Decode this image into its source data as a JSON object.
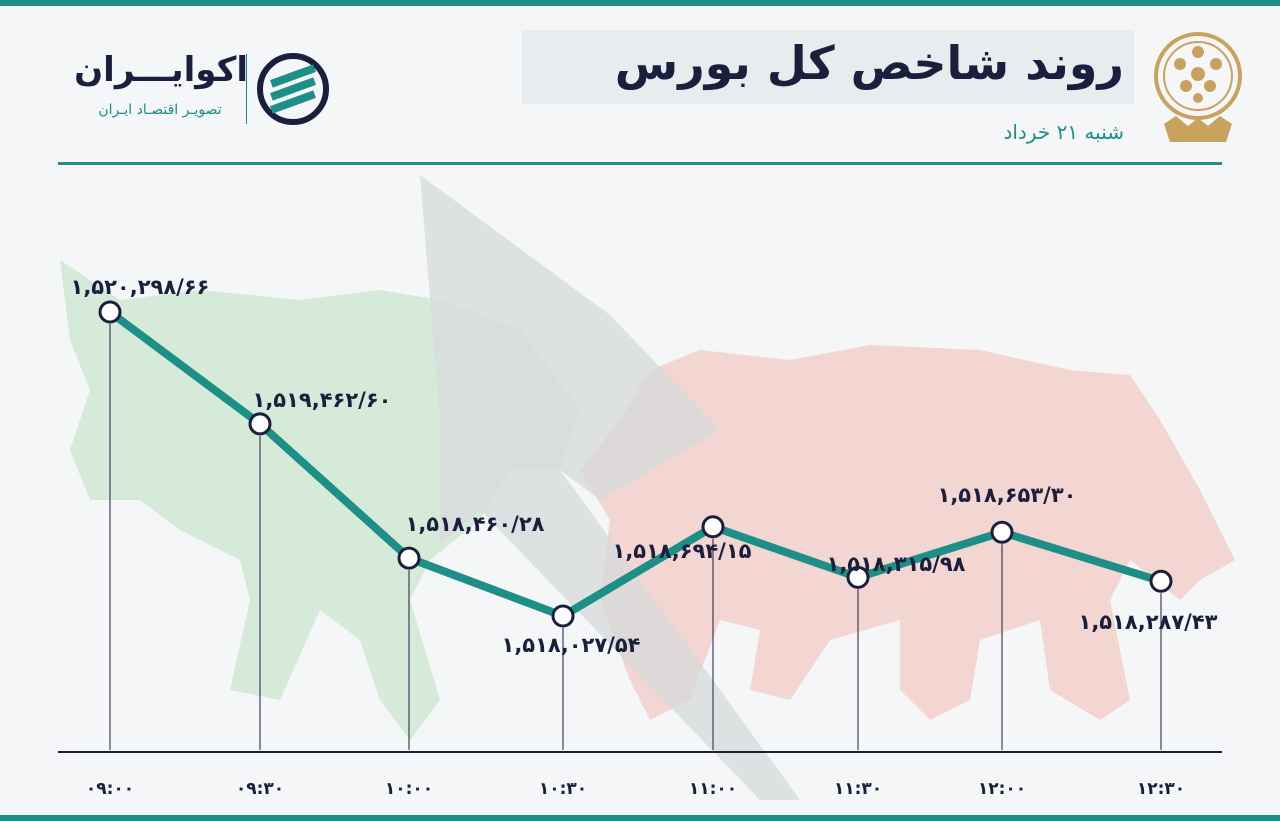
{
  "header": {
    "title": "روند شاخص کل بورس",
    "subtitle": "شنبه ۲۱ خرداد"
  },
  "brand": {
    "name": "اکوایـــران",
    "tagline": "تصویـر اقتصـاد ایـران"
  },
  "colors": {
    "accent": "#1d8f86",
    "text": "#1a1f3d",
    "bull": "#cfe7d4",
    "bear": "#f2d0cb",
    "arrow": "#d7d9db"
  },
  "chart_data": {
    "type": "line",
    "categories": [
      "۰۹:۰۰",
      "۰۹:۳۰",
      "۱۰:۰۰",
      "۱۰:۳۰",
      "۱۱:۰۰",
      "۱۱:۳۰",
      "۱۲:۰۰",
      "۱۲:۳۰"
    ],
    "values": [
      1520298.66,
      1519462.6,
      1518460.28,
      1518027.54,
      1518694.15,
      1518315.98,
      1518653.3,
      1518287.43
    ],
    "data_labels": [
      "۱,۵۲۰,۲۹۸/۶۶",
      "۱,۵۱۹,۴۶۲/۶۰",
      "۱,۵۱۸,۴۶۰/۲۸",
      "۱,۵۱۸,۰۲۷/۵۴",
      "۱,۵۱۸,۶۹۴/۱۵",
      "۱,۵۱۸,۳۱۵/۹۸",
      "۱,۵۱۸,۶۵۳/۳۰",
      "۱,۵۱۸,۲۸۷/۴۳"
    ],
    "title": "روند شاخص کل بورس",
    "xlabel": "",
    "ylabel": "",
    "grid": false,
    "legend": "none"
  }
}
